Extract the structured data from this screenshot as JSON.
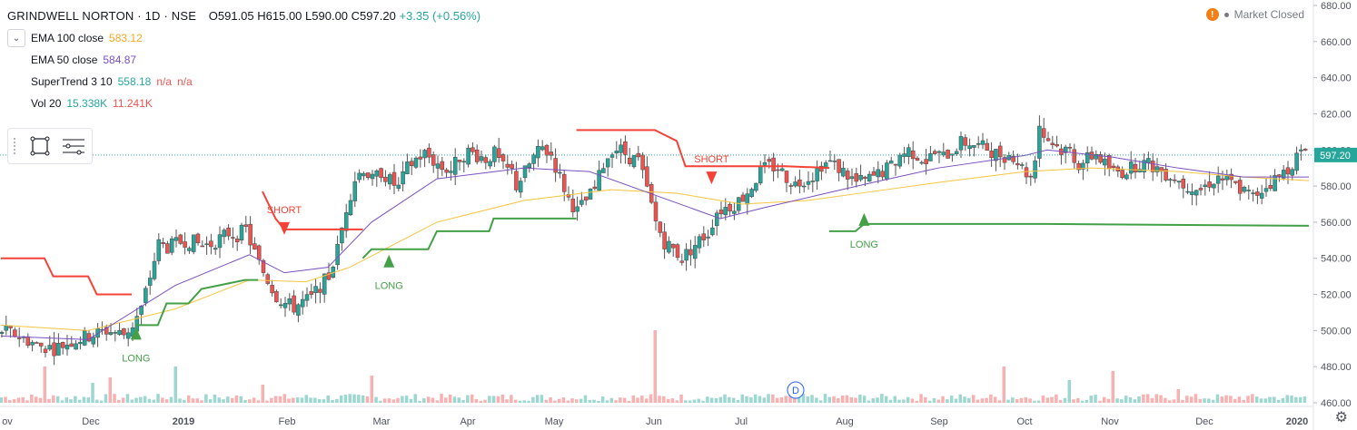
{
  "header": {
    "symbol": "GRINDWELL NORTON · 1D · NSE",
    "open": "O591.05",
    "high": "H615.00",
    "low": "L590.00",
    "close": "C597.20",
    "change": "+3.35 (+0.56%)",
    "market_status": "Market Closed"
  },
  "indicators": [
    {
      "label": "EMA 100 close",
      "values": [
        "583.12"
      ],
      "colors": [
        "#f5a623"
      ]
    },
    {
      "label": "EMA 50 close",
      "values": [
        "584.87"
      ],
      "colors": [
        "#7b4fbf"
      ]
    },
    {
      "label": "SuperTrend 3 10",
      "values": [
        "558.18",
        "n/a",
        "n/a"
      ],
      "colors": [
        "#26a69a",
        "#ef5350",
        "#ef5350"
      ]
    },
    {
      "label": "Vol 20",
      "values": [
        "15.338K",
        "11.241K"
      ],
      "colors": [
        "#26a69a",
        "#ef5350"
      ]
    }
  ],
  "colors": {
    "up": "#26a69a",
    "down": "#ef5350",
    "ema100": "#f5c542",
    "ema50": "#7b4fbf",
    "supertrend_up": "#43a047",
    "supertrend_down": "#f44336",
    "price_label_bg": "#26a69a"
  },
  "price_label": "597.20",
  "event_marker": "D",
  "chart_data": {
    "type": "candlestick",
    "x_ticks": [
      "ov",
      "Dec",
      "2019",
      "Feb",
      "Mar",
      "Apr",
      "May",
      "Jun",
      "Jul",
      "Aug",
      "Sep",
      "Oct",
      "Nov",
      "Dec",
      "2020"
    ],
    "y_ticks": [
      460,
      480,
      500,
      520,
      540,
      560,
      580,
      600,
      620,
      640,
      660,
      680
    ],
    "ylim": [
      460,
      680
    ],
    "last_price": 597.2,
    "signals": [
      {
        "label": "LONG",
        "price": 500
      },
      {
        "label": "SHORT",
        "price": 555
      },
      {
        "label": "LONG",
        "price": 540
      },
      {
        "label": "SHORT",
        "price": 583
      },
      {
        "label": "LONG",
        "price": 563
      }
    ],
    "close_path": [
      [
        0,
        500
      ],
      [
        8,
        497
      ],
      [
        16,
        492
      ],
      [
        24,
        490
      ],
      [
        32,
        494
      ],
      [
        40,
        497
      ],
      [
        48,
        500
      ],
      [
        56,
        498
      ],
      [
        60,
        503
      ],
      [
        64,
        512
      ],
      [
        68,
        530
      ],
      [
        72,
        548
      ],
      [
        76,
        546
      ],
      [
        80,
        548
      ],
      [
        84,
        550
      ],
      [
        88,
        549
      ],
      [
        92,
        547
      ],
      [
        96,
        548
      ],
      [
        100,
        551
      ],
      [
        104,
        554
      ],
      [
        108,
        553
      ],
      [
        112,
        556
      ],
      [
        114,
        549
      ],
      [
        118,
        537
      ],
      [
        122,
        528
      ],
      [
        126,
        519
      ],
      [
        130,
        515
      ],
      [
        134,
        513
      ],
      [
        138,
        516
      ],
      [
        142,
        518
      ],
      [
        146,
        525
      ],
      [
        150,
        530
      ],
      [
        154,
        545
      ],
      [
        158,
        568
      ],
      [
        162,
        584
      ],
      [
        166,
        590
      ],
      [
        170,
        583
      ],
      [
        174,
        588
      ],
      [
        178,
        583
      ],
      [
        182,
        579
      ],
      [
        186,
        590
      ],
      [
        190,
        595
      ],
      [
        194,
        598
      ],
      [
        198,
        594
      ],
      [
        202,
        590
      ],
      [
        206,
        589
      ],
      [
        210,
        596
      ],
      [
        214,
        599
      ],
      [
        218,
        597
      ],
      [
        222,
        595
      ],
      [
        226,
        598
      ],
      [
        230,
        590
      ],
      [
        234,
        588
      ],
      [
        236,
        580
      ],
      [
        240,
        588
      ],
      [
        244,
        596
      ],
      [
        248,
        601
      ],
      [
        252,
        597
      ],
      [
        256,
        585
      ],
      [
        260,
        573
      ],
      [
        264,
        566
      ],
      [
        268,
        572
      ],
      [
        272,
        578
      ],
      [
        276,
        592
      ],
      [
        280,
        601
      ],
      [
        284,
        600
      ],
      [
        288,
        596
      ],
      [
        292,
        594
      ],
      [
        296,
        578
      ],
      [
        300,
        560
      ],
      [
        304,
        549
      ],
      [
        308,
        545
      ],
      [
        312,
        540
      ],
      [
        316,
        545
      ],
      [
        320,
        550
      ],
      [
        324,
        554
      ],
      [
        328,
        566
      ],
      [
        332,
        568
      ],
      [
        336,
        570
      ],
      [
        340,
        574
      ],
      [
        344,
        580
      ],
      [
        348,
        588
      ],
      [
        352,
        591
      ],
      [
        356,
        590
      ],
      [
        360,
        585
      ],
      [
        364,
        581
      ],
      [
        368,
        584
      ],
      [
        372,
        586
      ],
      [
        376,
        592
      ],
      [
        380,
        593
      ],
      [
        384,
        590
      ],
      [
        388,
        586
      ],
      [
        392,
        582
      ],
      [
        396,
        583
      ],
      [
        400,
        585
      ],
      [
        404,
        588
      ],
      [
        408,
        591
      ],
      [
        412,
        597
      ],
      [
        416,
        600
      ],
      [
        420,
        597
      ],
      [
        424,
        594
      ],
      [
        428,
        598
      ],
      [
        432,
        596
      ],
      [
        436,
        600
      ],
      [
        440,
        604
      ],
      [
        444,
        604
      ],
      [
        448,
        602
      ],
      [
        452,
        601
      ],
      [
        456,
        598
      ],
      [
        460,
        597
      ],
      [
        464,
        597
      ],
      [
        468,
        590
      ],
      [
        472,
        585
      ],
      [
        474,
        597
      ],
      [
        476,
        614
      ],
      [
        478,
        608
      ],
      [
        482,
        604
      ],
      [
        486,
        600
      ],
      [
        490,
        600
      ],
      [
        494,
        592
      ],
      [
        498,
        595
      ],
      [
        502,
        598
      ],
      [
        506,
        592
      ],
      [
        510,
        588
      ],
      [
        514,
        588
      ],
      [
        518,
        590
      ],
      [
        522,
        593
      ],
      [
        526,
        592
      ],
      [
        530,
        590
      ],
      [
        534,
        587
      ],
      [
        538,
        585
      ],
      [
        542,
        581
      ],
      [
        546,
        580
      ],
      [
        550,
        578
      ],
      [
        554,
        582
      ],
      [
        558,
        585
      ],
      [
        562,
        583
      ],
      [
        566,
        580
      ],
      [
        570,
        577
      ],
      [
        574,
        574
      ],
      [
        578,
        578
      ],
      [
        582,
        582
      ],
      [
        586,
        585
      ],
      [
        590,
        590
      ],
      [
        594,
        596
      ],
      [
        598,
        600
      ],
      [
        600,
        597
      ]
    ],
    "ema50_path": [
      [
        0,
        497
      ],
      [
        40,
        495
      ],
      [
        80,
        525
      ],
      [
        114,
        542
      ],
      [
        130,
        532
      ],
      [
        150,
        535
      ],
      [
        170,
        560
      ],
      [
        200,
        584
      ],
      [
        240,
        590
      ],
      [
        270,
        588
      ],
      [
        300,
        575
      ],
      [
        330,
        562
      ],
      [
        350,
        568
      ],
      [
        375,
        575
      ],
      [
        400,
        582
      ],
      [
        430,
        590
      ],
      [
        470,
        597
      ],
      [
        480,
        600
      ],
      [
        510,
        596
      ],
      [
        540,
        590
      ],
      [
        570,
        585
      ],
      [
        600,
        585
      ]
    ],
    "ema100_path": [
      [
        0,
        503
      ],
      [
        40,
        500
      ],
      [
        80,
        512
      ],
      [
        114,
        528
      ],
      [
        140,
        527
      ],
      [
        160,
        535
      ],
      [
        200,
        560
      ],
      [
        240,
        572
      ],
      [
        280,
        578
      ],
      [
        310,
        576
      ],
      [
        340,
        570
      ],
      [
        370,
        572
      ],
      [
        400,
        577
      ],
      [
        430,
        582
      ],
      [
        470,
        588
      ],
      [
        500,
        590
      ],
      [
        540,
        588
      ],
      [
        570,
        585
      ],
      [
        600,
        583
      ]
    ],
    "supertrend": [
      {
        "trend": "down",
        "points": [
          [
            0,
            540
          ],
          [
            20,
            540
          ],
          [
            24,
            530
          ],
          [
            40,
            530
          ],
          [
            44,
            520
          ],
          [
            60,
            520
          ]
        ]
      },
      {
        "trend": "up",
        "points": [
          [
            62,
            503
          ],
          [
            72,
            503
          ],
          [
            76,
            515
          ],
          [
            86,
            515
          ],
          [
            92,
            523
          ],
          [
            112,
            528
          ],
          [
            118,
            528
          ]
        ]
      },
      {
        "trend": "down",
        "points": [
          [
            120,
            577
          ],
          [
            126,
            562
          ],
          [
            130,
            556
          ],
          [
            150,
            556
          ],
          [
            166,
            556
          ]
        ]
      },
      {
        "trend": "up",
        "points": [
          [
            166,
            540
          ],
          [
            170,
            545
          ],
          [
            196,
            545
          ],
          [
            200,
            555
          ],
          [
            224,
            555
          ],
          [
            226,
            562
          ],
          [
            264,
            562
          ]
        ]
      },
      {
        "trend": "down",
        "points": [
          [
            264,
            611
          ],
          [
            300,
            611
          ],
          [
            310,
            605
          ],
          [
            314,
            591
          ],
          [
            360,
            591
          ],
          [
            380,
            590
          ]
        ]
      },
      {
        "trend": "up",
        "points": [
          [
            380,
            555
          ],
          [
            392,
            555
          ],
          [
            396,
            559
          ],
          [
            480,
            559
          ],
          [
            600,
            558
          ]
        ]
      }
    ],
    "volume_spikes": [
      [
        20,
        40
      ],
      [
        42,
        22
      ],
      [
        50,
        28
      ],
      [
        80,
        40
      ],
      [
        120,
        20
      ],
      [
        170,
        30
      ],
      [
        300,
        80
      ],
      [
        460,
        40
      ],
      [
        490,
        25
      ],
      [
        510,
        35
      ],
      [
        540,
        15
      ]
    ]
  }
}
